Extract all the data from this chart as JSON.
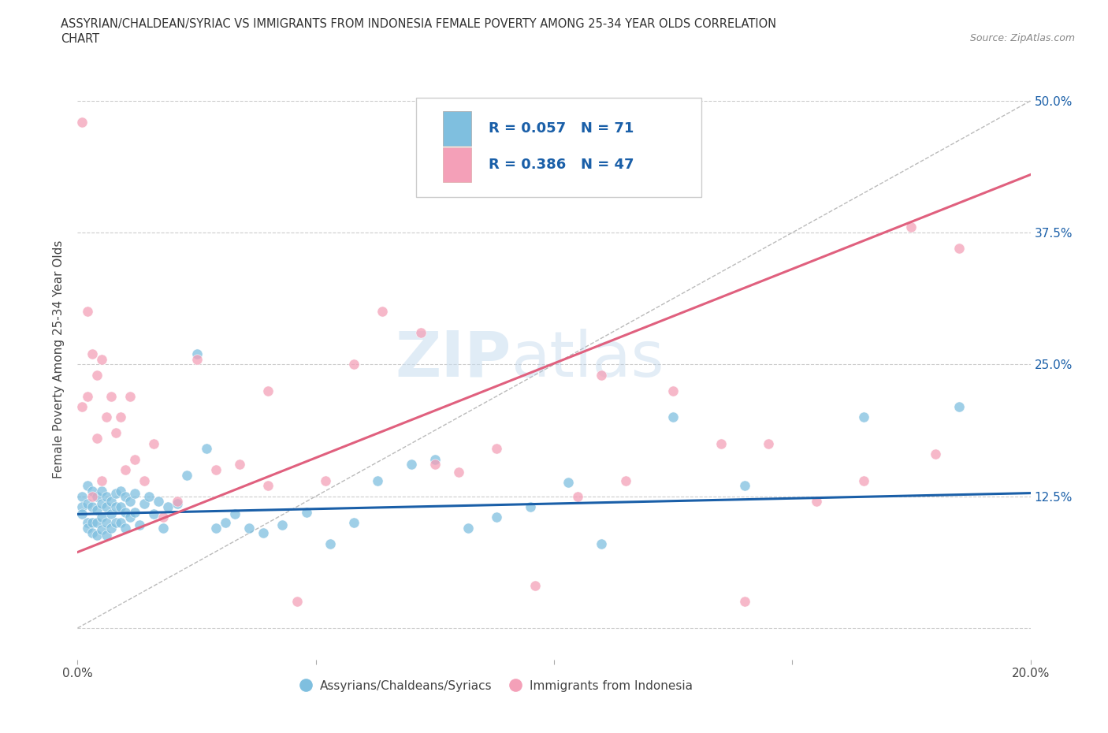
{
  "title_line1": "ASSYRIAN/CHALDEAN/SYRIAC VS IMMIGRANTS FROM INDONESIA FEMALE POVERTY AMONG 25-34 YEAR OLDS CORRELATION",
  "title_line2": "CHART",
  "source_text": "Source: ZipAtlas.com",
  "ylabel": "Female Poverty Among 25-34 Year Olds",
  "xlim": [
    0.0,
    0.2
  ],
  "ylim": [
    -0.03,
    0.54
  ],
  "xticks": [
    0.0,
    0.05,
    0.1,
    0.15,
    0.2
  ],
  "xticklabels": [
    "0.0%",
    "",
    "",
    "",
    "20.0%"
  ],
  "yticks": [
    0.0,
    0.125,
    0.25,
    0.375,
    0.5
  ],
  "grid_color": "#cccccc",
  "watermark_zip": "ZIP",
  "watermark_atlas": "atlas",
  "blue_color": "#7fbfdf",
  "pink_color": "#f4a0b8",
  "blue_line_color": "#1a5fa8",
  "pink_line_color": "#e0607e",
  "R_blue": 0.057,
  "N_blue": 71,
  "R_pink": 0.386,
  "N_pink": 47,
  "label_blue": "Assyrians/Chaldeans/Syriacs",
  "label_pink": "Immigrants from Indonesia",
  "legend_color": "#1a5fa8",
  "blue_scatter_x": [
    0.001,
    0.001,
    0.001,
    0.002,
    0.002,
    0.002,
    0.002,
    0.003,
    0.003,
    0.003,
    0.003,
    0.004,
    0.004,
    0.004,
    0.004,
    0.005,
    0.005,
    0.005,
    0.005,
    0.006,
    0.006,
    0.006,
    0.006,
    0.007,
    0.007,
    0.007,
    0.008,
    0.008,
    0.008,
    0.009,
    0.009,
    0.009,
    0.01,
    0.01,
    0.01,
    0.011,
    0.011,
    0.012,
    0.012,
    0.013,
    0.014,
    0.015,
    0.016,
    0.017,
    0.018,
    0.019,
    0.021,
    0.023,
    0.025,
    0.027,
    0.029,
    0.031,
    0.033,
    0.036,
    0.039,
    0.043,
    0.048,
    0.053,
    0.058,
    0.063,
    0.07,
    0.075,
    0.082,
    0.088,
    0.095,
    0.103,
    0.11,
    0.125,
    0.14,
    0.165,
    0.185
  ],
  "blue_scatter_y": [
    0.125,
    0.115,
    0.108,
    0.135,
    0.118,
    0.1,
    0.095,
    0.13,
    0.115,
    0.1,
    0.09,
    0.125,
    0.112,
    0.1,
    0.088,
    0.13,
    0.118,
    0.105,
    0.093,
    0.125,
    0.115,
    0.1,
    0.088,
    0.12,
    0.108,
    0.095,
    0.128,
    0.115,
    0.1,
    0.13,
    0.115,
    0.1,
    0.125,
    0.11,
    0.095,
    0.12,
    0.105,
    0.128,
    0.11,
    0.098,
    0.118,
    0.125,
    0.108,
    0.12,
    0.095,
    0.115,
    0.118,
    0.145,
    0.26,
    0.17,
    0.095,
    0.1,
    0.108,
    0.095,
    0.09,
    0.098,
    0.11,
    0.08,
    0.1,
    0.14,
    0.155,
    0.16,
    0.095,
    0.105,
    0.115,
    0.138,
    0.08,
    0.2,
    0.135,
    0.2,
    0.21
  ],
  "pink_scatter_x": [
    0.001,
    0.001,
    0.002,
    0.002,
    0.003,
    0.003,
    0.004,
    0.004,
    0.005,
    0.005,
    0.006,
    0.007,
    0.008,
    0.009,
    0.01,
    0.011,
    0.012,
    0.014,
    0.016,
    0.018,
    0.021,
    0.025,
    0.029,
    0.034,
    0.04,
    0.046,
    0.052,
    0.058,
    0.064,
    0.072,
    0.08,
    0.088,
    0.096,
    0.105,
    0.115,
    0.125,
    0.135,
    0.145,
    0.155,
    0.165,
    0.175,
    0.18,
    0.185,
    0.04,
    0.075,
    0.11,
    0.14
  ],
  "pink_scatter_y": [
    0.48,
    0.21,
    0.3,
    0.22,
    0.26,
    0.125,
    0.24,
    0.18,
    0.255,
    0.14,
    0.2,
    0.22,
    0.185,
    0.2,
    0.15,
    0.22,
    0.16,
    0.14,
    0.175,
    0.105,
    0.12,
    0.255,
    0.15,
    0.155,
    0.135,
    0.025,
    0.14,
    0.25,
    0.3,
    0.28,
    0.148,
    0.17,
    0.04,
    0.125,
    0.14,
    0.225,
    0.175,
    0.175,
    0.12,
    0.14,
    0.38,
    0.165,
    0.36,
    0.225,
    0.155,
    0.24,
    0.025
  ],
  "blue_trend_x": [
    0.0,
    0.2
  ],
  "blue_trend_y": [
    0.108,
    0.128
  ],
  "pink_trend_x": [
    0.0,
    0.2
  ],
  "pink_trend_y": [
    0.072,
    0.43
  ],
  "dashed_line_color": "#bbbbbb",
  "dashed_line_x": [
    0.0,
    0.2
  ],
  "dashed_line_y": [
    0.0,
    0.5
  ]
}
